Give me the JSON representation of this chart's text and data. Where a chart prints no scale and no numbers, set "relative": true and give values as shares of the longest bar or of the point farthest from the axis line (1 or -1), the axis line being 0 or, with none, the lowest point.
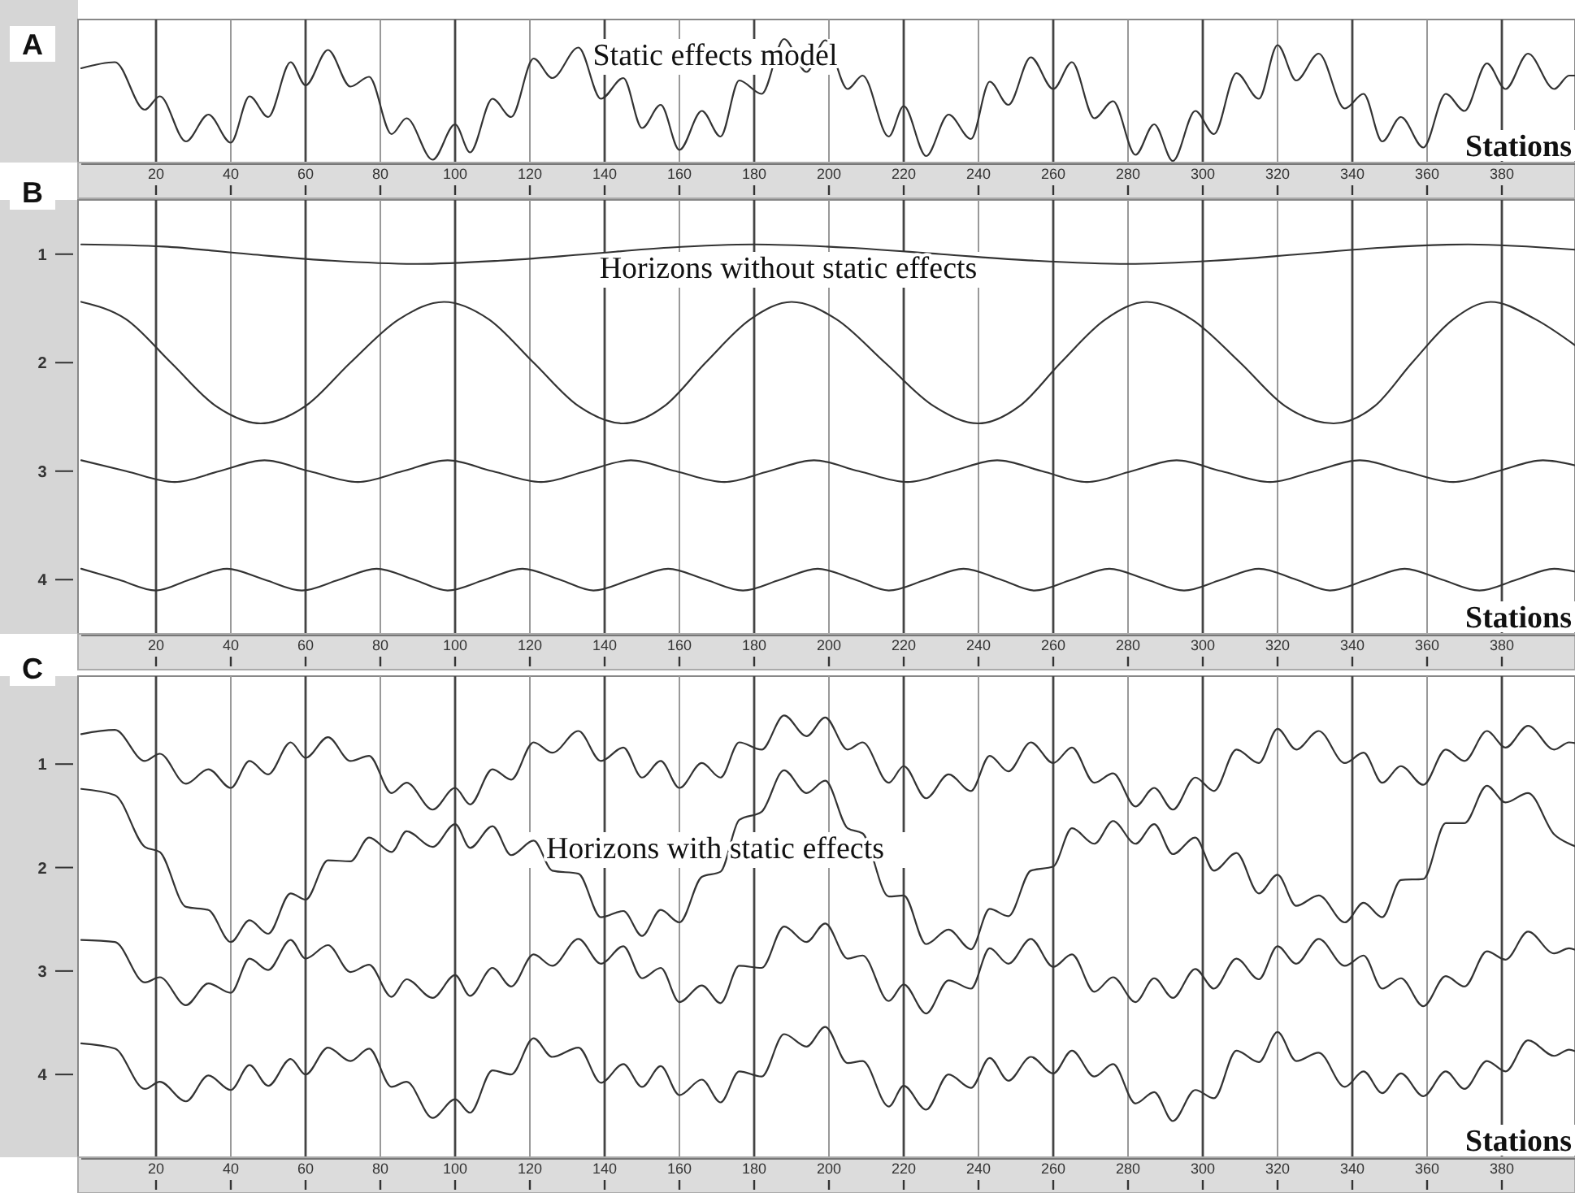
{
  "chart_data": [
    {
      "type": "line",
      "title": "Static effects model",
      "xlabel": "Stations",
      "annotations": [
        "A"
      ],
      "relative": true,
      "xlim": [
        0,
        400
      ],
      "xticks": [
        20,
        40,
        60,
        80,
        100,
        120,
        140,
        160,
        180,
        200,
        220,
        240,
        260,
        280,
        300,
        320,
        340,
        360,
        380
      ],
      "grid": "x",
      "x": [
        0,
        9,
        17,
        21,
        28,
        34,
        40,
        45,
        50,
        56,
        60,
        66,
        72,
        77,
        83,
        87,
        94,
        100,
        104,
        110,
        115,
        121,
        126,
        133,
        139,
        145,
        150,
        155,
        160,
        166,
        171,
        176,
        182,
        188,
        194,
        199,
        205,
        209,
        216,
        220,
        226,
        232,
        238,
        243,
        248,
        254,
        260,
        265,
        271,
        276,
        282,
        287,
        292,
        298,
        303,
        309,
        315,
        320,
        325,
        331,
        338,
        343,
        348,
        353,
        359,
        365,
        370,
        376,
        381,
        387,
        394,
        398,
        400
      ],
      "series": [
        {
          "color": "#333333",
          "values": [
            0.76,
            0.81,
            0.42,
            0.53,
            0.16,
            0.38,
            0.15,
            0.53,
            0.36,
            0.81,
            0.62,
            0.91,
            0.61,
            0.69,
            0.22,
            0.35,
            0.01,
            0.3,
            0.07,
            0.51,
            0.36,
            0.84,
            0.68,
            0.93,
            0.51,
            0.68,
            0.27,
            0.46,
            0.09,
            0.41,
            0.2,
            0.66,
            0.55,
            1.0,
            0.73,
            0.99,
            0.59,
            0.7,
            0.2,
            0.45,
            0.04,
            0.38,
            0.18,
            0.65,
            0.46,
            0.85,
            0.59,
            0.81,
            0.35,
            0.49,
            0.05,
            0.3,
            0,
            0.41,
            0.22,
            0.72,
            0.51,
            0.95,
            0.66,
            0.88,
            0.43,
            0.55,
            0.16,
            0.36,
            0.11,
            0.55,
            0.41,
            0.8,
            0.59,
            0.88,
            0.59,
            0.7,
            0.7
          ]
        }
      ]
    },
    {
      "type": "line",
      "title": "Horizons without static effects",
      "xlabel": "Stations",
      "annotations": [
        "B"
      ],
      "xlim": [
        0,
        400
      ],
      "xticks": [
        20,
        40,
        60,
        80,
        100,
        120,
        140,
        160,
        180,
        200,
        220,
        240,
        260,
        280,
        300,
        320,
        340,
        360,
        380
      ],
      "ylim": [
        4.5,
        0.5
      ],
      "yticks": [
        1,
        2,
        3,
        4
      ],
      "grid": "x",
      "series": [
        {
          "color": "#333333",
          "x": [
            0,
            22,
            45,
            67,
            90,
            112,
            135,
            157,
            180,
            205,
            230,
            255,
            280,
            303,
            326,
            348,
            371,
            400
          ],
          "values": [
            0.91,
            0.93,
            1.0,
            1.06,
            1.09,
            1.06,
            1.0,
            0.94,
            0.91,
            0.94,
            1.0,
            1.06,
            1.09,
            1.06,
            1.0,
            0.94,
            0.91,
            0.96
          ]
        },
        {
          "color": "#333333",
          "x": [
            0,
            12,
            24,
            36,
            48,
            60,
            72,
            85,
            97,
            109,
            121,
            133,
            145,
            156,
            167,
            179,
            190,
            202,
            215,
            228,
            240,
            251,
            262,
            274,
            285,
            297,
            310,
            322,
            335,
            346,
            356,
            367,
            377,
            389,
            400
          ],
          "values": [
            1.44,
            1.6,
            2.0,
            2.4,
            2.56,
            2.4,
            2.0,
            1.6,
            1.44,
            1.6,
            2.0,
            2.4,
            2.56,
            2.4,
            2.0,
            1.6,
            1.44,
            1.6,
            2.0,
            2.4,
            2.56,
            2.4,
            2.0,
            1.6,
            1.44,
            1.6,
            2.0,
            2.4,
            2.56,
            2.4,
            2.0,
            1.6,
            1.44,
            1.6,
            1.85
          ]
        },
        {
          "color": "#333333",
          "x": [
            0,
            12,
            25,
            37,
            49,
            61,
            74,
            86,
            98,
            110,
            123,
            135,
            147,
            159,
            172,
            184,
            196,
            208,
            221,
            233,
            245,
            257,
            269,
            281,
            293,
            305,
            318,
            330,
            342,
            354,
            367,
            379,
            391,
            400
          ],
          "values": [
            2.9,
            3.0,
            3.1,
            3.0,
            2.9,
            3.0,
            3.1,
            3.0,
            2.9,
            3.0,
            3.1,
            3.0,
            2.9,
            3.0,
            3.1,
            3.0,
            2.9,
            3.0,
            3.1,
            3.0,
            2.9,
            3.0,
            3.1,
            3.0,
            2.9,
            3.0,
            3.1,
            3.0,
            2.9,
            3.0,
            3.1,
            3.0,
            2.9,
            2.95
          ]
        },
        {
          "color": "#333333",
          "x": [
            0,
            10,
            20,
            29,
            39,
            49,
            59,
            69,
            79,
            89,
            98,
            108,
            118,
            128,
            137,
            147,
            157,
            167,
            177,
            187,
            197,
            207,
            216,
            226,
            236,
            246,
            255,
            265,
            275,
            285,
            295,
            305,
            315,
            325,
            334,
            344,
            354,
            364,
            374,
            384,
            394,
            400
          ],
          "values": [
            3.9,
            4.0,
            4.1,
            4.0,
            3.9,
            4.0,
            4.1,
            4.0,
            3.9,
            4.0,
            4.1,
            4.0,
            3.9,
            4.0,
            4.1,
            4.0,
            3.9,
            4.0,
            4.1,
            4.0,
            3.9,
            4.0,
            4.1,
            4.0,
            3.9,
            4.0,
            4.1,
            4.0,
            3.9,
            4.0,
            4.1,
            4.0,
            3.9,
            4.0,
            4.1,
            4.0,
            3.9,
            4.0,
            4.1,
            4.0,
            3.9,
            3.93
          ]
        }
      ]
    },
    {
      "type": "line",
      "title": "Horizons with static effects",
      "xlabel": "Stations",
      "annotations": [
        "C"
      ],
      "xlim": [
        0,
        400
      ],
      "xticks": [
        20,
        40,
        60,
        80,
        100,
        120,
        140,
        160,
        180,
        200,
        220,
        240,
        260,
        280,
        300,
        320,
        340,
        360,
        380
      ],
      "ylim": [
        4.8,
        0.15
      ],
      "yticks": [
        1,
        2,
        3,
        4
      ],
      "grid": "x",
      "x": [
        0,
        9,
        17,
        21,
        28,
        34,
        40,
        45,
        50,
        56,
        60,
        66,
        72,
        77,
        83,
        87,
        94,
        100,
        104,
        110,
        115,
        121,
        126,
        133,
        139,
        145,
        150,
        155,
        160,
        166,
        171,
        176,
        182,
        188,
        194,
        199,
        205,
        209,
        216,
        220,
        226,
        232,
        238,
        243,
        248,
        254,
        260,
        265,
        271,
        276,
        282,
        287,
        292,
        298,
        303,
        309,
        315,
        320,
        325,
        331,
        338,
        343,
        348,
        353,
        359,
        365,
        370,
        376,
        381,
        387,
        394,
        398,
        400
      ],
      "series": [
        {
          "color": "#333333",
          "values": [
            0.71,
            0.67,
            0.97,
            0.9,
            1.19,
            1.05,
            1.23,
            0.97,
            1.1,
            0.79,
            0.94,
            0.74,
            0.97,
            0.92,
            1.28,
            1.18,
            1.44,
            1.23,
            1.39,
            1.05,
            1.15,
            0.79,
            0.89,
            0.68,
            0.97,
            0.84,
            1.13,
            0.97,
            1.23,
            0.99,
            1.13,
            0.79,
            0.86,
            0.53,
            0.73,
            0.55,
            0.86,
            0.79,
            1.18,
            1.02,
            1.33,
            1.1,
            1.26,
            0.92,
            1.07,
            0.79,
            0.99,
            0.84,
            1.18,
            1.09,
            1.41,
            1.23,
            1.44,
            1.13,
            1.26,
            0.86,
            0.99,
            0.66,
            0.86,
            0.68,
            0.99,
            0.89,
            1.18,
            1.02,
            1.2,
            0.86,
            0.97,
            0.68,
            0.84,
            0.63,
            0.86,
            0.79,
            0.8
          ]
        },
        {
          "color": "#333333",
          "values": [
            1.24,
            1.3,
            1.8,
            1.85,
            2.38,
            2.41,
            2.72,
            2.51,
            2.64,
            2.25,
            2.31,
            1.93,
            1.94,
            1.71,
            1.85,
            1.65,
            1.8,
            1.58,
            1.81,
            1.6,
            1.88,
            1.74,
            2.03,
            2.06,
            2.48,
            2.42,
            2.66,
            2.41,
            2.53,
            2.09,
            2.04,
            1.54,
            1.46,
            1.06,
            1.28,
            1.16,
            1.62,
            1.67,
            2.28,
            2.27,
            2.74,
            2.6,
            2.79,
            2.4,
            2.47,
            2.03,
            1.99,
            1.62,
            1.77,
            1.55,
            1.77,
            1.58,
            1.87,
            1.71,
            2.03,
            1.86,
            2.25,
            2.07,
            2.37,
            2.27,
            2.53,
            2.34,
            2.48,
            2.12,
            2.11,
            1.57,
            1.57,
            1.21,
            1.37,
            1.28,
            1.68,
            1.77,
            1.8
          ]
        },
        {
          "color": "#333333",
          "values": [
            2.7,
            2.72,
            3.11,
            3.06,
            3.33,
            3.12,
            3.21,
            2.88,
            2.99,
            2.7,
            2.88,
            2.75,
            3.01,
            2.94,
            3.25,
            3.08,
            3.26,
            3.04,
            3.24,
            2.97,
            3.15,
            2.84,
            2.95,
            2.69,
            2.93,
            2.76,
            3.07,
            2.97,
            3.3,
            3.14,
            3.31,
            2.95,
            2.97,
            2.57,
            2.72,
            2.54,
            2.88,
            2.85,
            3.29,
            3.13,
            3.41,
            3.09,
            3.17,
            2.78,
            2.93,
            2.69,
            2.96,
            2.84,
            3.2,
            3.06,
            3.3,
            3.07,
            3.26,
            2.98,
            3.17,
            2.88,
            3.08,
            2.76,
            2.93,
            2.69,
            2.95,
            2.85,
            3.17,
            3.07,
            3.34,
            3.05,
            3.15,
            2.81,
            2.89,
            2.62,
            2.83,
            2.78,
            2.8
          ]
        },
        {
          "color": "#333333",
          "values": [
            3.7,
            3.75,
            4.14,
            4.07,
            4.26,
            4.01,
            4.15,
            3.91,
            4.11,
            3.85,
            4.0,
            3.74,
            3.87,
            3.75,
            4.12,
            4.07,
            4.42,
            4.24,
            4.37,
            3.96,
            4.0,
            3.65,
            3.83,
            3.74,
            4.08,
            3.9,
            4.12,
            3.92,
            4.2,
            4.05,
            4.27,
            3.97,
            4.02,
            3.61,
            3.73,
            3.54,
            3.89,
            3.87,
            4.31,
            4.11,
            4.34,
            4.0,
            4.13,
            3.84,
            4.06,
            3.83,
            3.99,
            3.77,
            4.02,
            3.9,
            4.28,
            4.17,
            4.45,
            4.15,
            4.23,
            3.77,
            3.88,
            3.59,
            3.87,
            3.79,
            4.12,
            3.97,
            4.18,
            3.99,
            4.21,
            3.97,
            4.14,
            3.87,
            3.97,
            3.67,
            3.82,
            3.76,
            3.78
          ]
        }
      ]
    }
  ]
}
